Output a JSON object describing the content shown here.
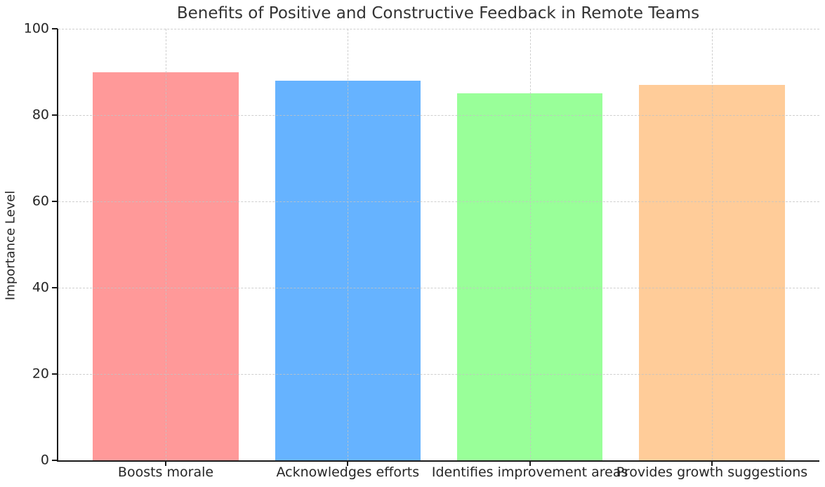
{
  "chart_data": {
    "type": "bar",
    "title": "Benefits of Positive and Constructive Feedback in Remote Teams",
    "categories": [
      "Boosts morale",
      "Acknowledges efforts",
      "Identifies improvement areas",
      "Provides growth suggestions"
    ],
    "values": [
      90,
      88,
      85,
      87
    ],
    "colors": [
      "#ff9999",
      "#66b3ff",
      "#99ff99",
      "#ffcc99"
    ],
    "xlabel": "",
    "ylabel": "Importance Level",
    "ylim": [
      0,
      100
    ],
    "yticks": [
      0,
      20,
      40,
      60,
      80,
      100
    ],
    "xlim": [
      -0.59,
      3.59
    ],
    "bar_width": 0.8,
    "grid": true,
    "grid_linestyle": "dashed",
    "legend": "none",
    "background_color": "#ffffff",
    "axis_color": "#1a1a1a",
    "grid_color": "#c4c4c4",
    "text_color": "#262626"
  }
}
